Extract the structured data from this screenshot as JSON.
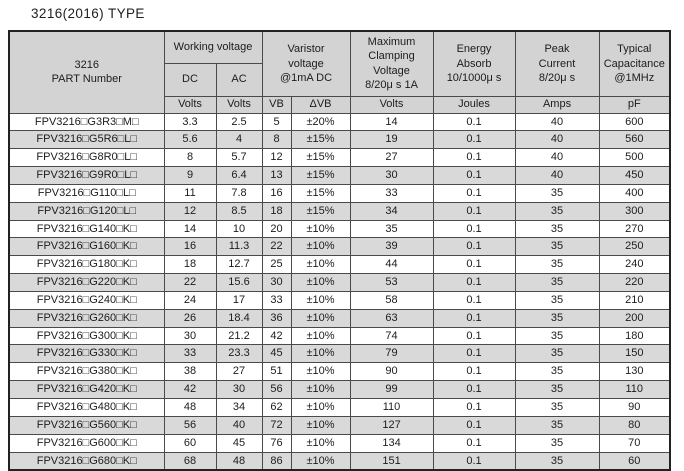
{
  "page": {
    "title": "3216(2016) TYPE"
  },
  "colors": {
    "header_bg": "#d3d3d3",
    "row_stripe": "#d9d9d9",
    "grid_line": "#4a4a4a",
    "frame": "#222222",
    "text": "#1c1c1c"
  },
  "table": {
    "header": {
      "part": "3216\nPART Number",
      "working_voltage": "Working voltage",
      "dc": "DC",
      "ac": "AC",
      "varistor": "Varistor\nvoltage\n@1mA DC",
      "clamping": "Maximum\nClamping\nVoltage\n8/20μ s 1A",
      "energy": "Energy\nAbsorb\n10/1000μ s",
      "peak": "Peak\nCurrent\n8/20μ s",
      "capacitance": "Typical\nCapacitance\n@1MHz",
      "units": [
        "Volts",
        "Volts",
        "VB",
        "ΔVB",
        "Volts",
        "Joules",
        "Amps",
        "pF"
      ]
    },
    "rows": [
      {
        "part": "FPV3216□G3R3□M□",
        "dc": "3.3",
        "ac": "2.5",
        "vb": "5",
        "dvb": "±20%",
        "clamp": "14",
        "joules": "0.1",
        "amps": "40",
        "pf": "600"
      },
      {
        "part": "FPV3216□G5R6□L□",
        "dc": "5.6",
        "ac": "4",
        "vb": "8",
        "dvb": "±15%",
        "clamp": "19",
        "joules": "0.1",
        "amps": "40",
        "pf": "560"
      },
      {
        "part": "FPV3216□G8R0□L□",
        "dc": "8",
        "ac": "5.7",
        "vb": "12",
        "dvb": "±15%",
        "clamp": "27",
        "joules": "0.1",
        "amps": "40",
        "pf": "500"
      },
      {
        "part": "FPV3216□G9R0□L□",
        "dc": "9",
        "ac": "6.4",
        "vb": "13",
        "dvb": "±15%",
        "clamp": "30",
        "joules": "0.1",
        "amps": "40",
        "pf": "450"
      },
      {
        "part": "FPV3216□G110□L□",
        "dc": "11",
        "ac": "7.8",
        "vb": "16",
        "dvb": "±15%",
        "clamp": "33",
        "joules": "0.1",
        "amps": "35",
        "pf": "400"
      },
      {
        "part": "FPV3216□G120□L□",
        "dc": "12",
        "ac": "8.5",
        "vb": "18",
        "dvb": "±15%",
        "clamp": "34",
        "joules": "0.1",
        "amps": "35",
        "pf": "300"
      },
      {
        "part": "FPV3216□G140□K□",
        "dc": "14",
        "ac": "10",
        "vb": "20",
        "dvb": "±10%",
        "clamp": "35",
        "joules": "0.1",
        "amps": "35",
        "pf": "270"
      },
      {
        "part": "FPV3216□G160□K□",
        "dc": "16",
        "ac": "11.3",
        "vb": "22",
        "dvb": "±10%",
        "clamp": "39",
        "joules": "0.1",
        "amps": "35",
        "pf": "250"
      },
      {
        "part": "FPV3216□G180□K□",
        "dc": "18",
        "ac": "12.7",
        "vb": "25",
        "dvb": "±10%",
        "clamp": "44",
        "joules": "0.1",
        "amps": "35",
        "pf": "240"
      },
      {
        "part": "FPV3216□G220□K□",
        "dc": "22",
        "ac": "15.6",
        "vb": "30",
        "dvb": "±10%",
        "clamp": "53",
        "joules": "0.1",
        "amps": "35",
        "pf": "220"
      },
      {
        "part": "FPV3216□G240□K□",
        "dc": "24",
        "ac": "17",
        "vb": "33",
        "dvb": "±10%",
        "clamp": "58",
        "joules": "0.1",
        "amps": "35",
        "pf": "210"
      },
      {
        "part": "FPV3216□G260□K□",
        "dc": "26",
        "ac": "18.4",
        "vb": "36",
        "dvb": "±10%",
        "clamp": "63",
        "joules": "0.1",
        "amps": "35",
        "pf": "200"
      },
      {
        "part": "FPV3216□G300□K□",
        "dc": "30",
        "ac": "21.2",
        "vb": "42",
        "dvb": "±10%",
        "clamp": "74",
        "joules": "0.1",
        "amps": "35",
        "pf": "180"
      },
      {
        "part": "FPV3216□G330□K□",
        "dc": "33",
        "ac": "23.3",
        "vb": "45",
        "dvb": "±10%",
        "clamp": "79",
        "joules": "0.1",
        "amps": "35",
        "pf": "150"
      },
      {
        "part": "FPV3216□G380□K□",
        "dc": "38",
        "ac": "27",
        "vb": "51",
        "dvb": "±10%",
        "clamp": "90",
        "joules": "0.1",
        "amps": "35",
        "pf": "130"
      },
      {
        "part": "FPV3216□G420□K□",
        "dc": "42",
        "ac": "30",
        "vb": "56",
        "dvb": "±10%",
        "clamp": "99",
        "joules": "0.1",
        "amps": "35",
        "pf": "110"
      },
      {
        "part": "FPV3216□G480□K□",
        "dc": "48",
        "ac": "34",
        "vb": "62",
        "dvb": "±10%",
        "clamp": "110",
        "joules": "0.1",
        "amps": "35",
        "pf": "90"
      },
      {
        "part": "FPV3216□G560□K□",
        "dc": "56",
        "ac": "40",
        "vb": "72",
        "dvb": "±10%",
        "clamp": "127",
        "joules": "0.1",
        "amps": "35",
        "pf": "80"
      },
      {
        "part": "FPV3216□G600□K□",
        "dc": "60",
        "ac": "45",
        "vb": "76",
        "dvb": "±10%",
        "clamp": "134",
        "joules": "0.1",
        "amps": "35",
        "pf": "70"
      },
      {
        "part": "FPV3216□G680□K□",
        "dc": "68",
        "ac": "48",
        "vb": "86",
        "dvb": "±10%",
        "clamp": "151",
        "joules": "0.1",
        "amps": "35",
        "pf": "60"
      }
    ]
  }
}
